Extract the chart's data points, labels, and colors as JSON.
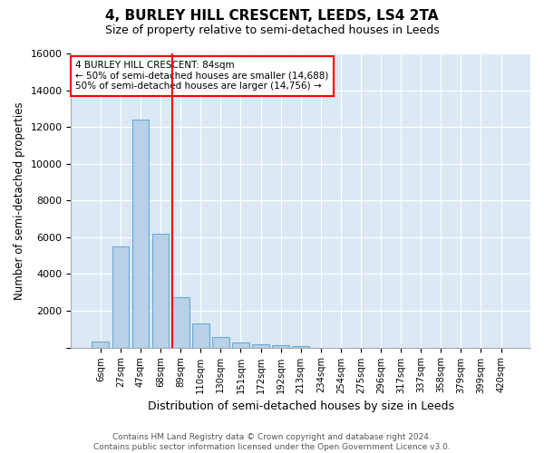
{
  "title": "4, BURLEY HILL CRESCENT, LEEDS, LS4 2TA",
  "subtitle": "Size of property relative to semi-detached houses in Leeds",
  "xlabel": "Distribution of semi-detached houses by size in Leeds",
  "ylabel": "Number of semi-detached properties",
  "bar_labels": [
    "6sqm",
    "27sqm",
    "47sqm",
    "68sqm",
    "89sqm",
    "110sqm",
    "130sqm",
    "151sqm",
    "172sqm",
    "192sqm",
    "213sqm",
    "234sqm",
    "254sqm",
    "275sqm",
    "296sqm",
    "317sqm",
    "337sqm",
    "358sqm",
    "379sqm",
    "399sqm",
    "420sqm"
  ],
  "bar_values": [
    300,
    5500,
    12400,
    6200,
    2750,
    1300,
    560,
    280,
    200,
    130,
    80,
    0,
    0,
    0,
    0,
    0,
    0,
    0,
    0,
    0,
    0
  ],
  "bar_color": "#b8d0e8",
  "bar_edge_color": "#6aaad4",
  "smaller_count": 14688,
  "larger_count": 14756,
  "annotation_text_line1": "4 BURLEY HILL CRESCENT: 84sqm",
  "annotation_text_line2": "← 50% of semi-detached houses are smaller (14,688)",
  "annotation_text_line3": "50% of semi-detached houses are larger (14,756) →",
  "red_line_bar_index": 4,
  "ylim": [
    0,
    16000
  ],
  "yticks": [
    0,
    2000,
    4000,
    6000,
    8000,
    10000,
    12000,
    14000,
    16000
  ],
  "background_color": "#dce9f5",
  "footer_line1": "Contains HM Land Registry data © Crown copyright and database right 2024.",
  "footer_line2": "Contains public sector information licensed under the Open Government Licence v3.0."
}
